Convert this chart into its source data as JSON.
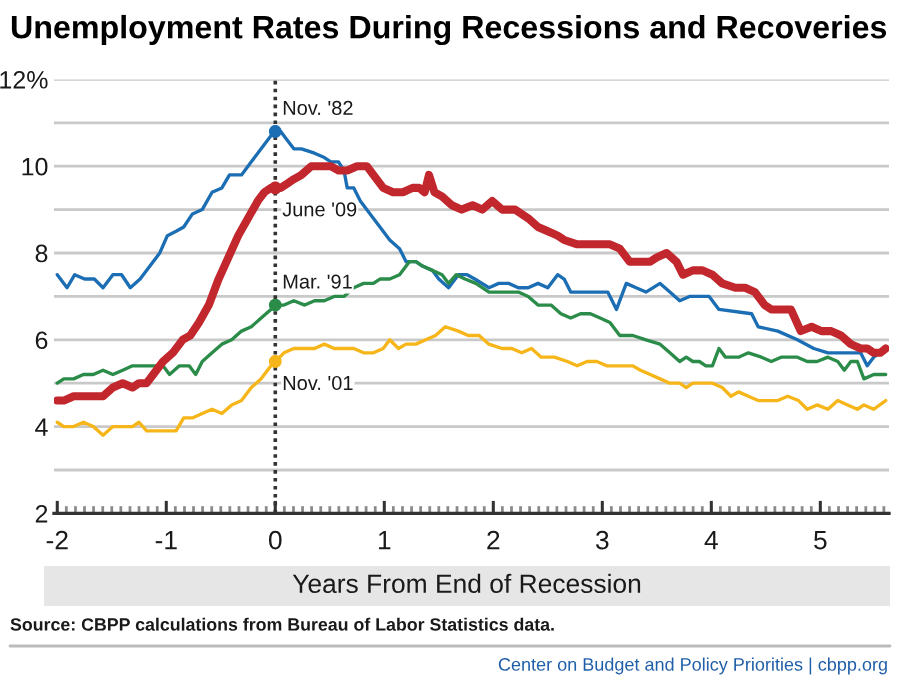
{
  "chart_data": {
    "type": "line",
    "title": "Unemployment Rates During Recessions and Recoveries",
    "xlabel": "Years From End of Recession",
    "annotations": [
      "Source: CBPP calculations from Bureau of Labor Statistics data.",
      "Center on Budget and Policy Priorities | cbpp.org"
    ],
    "xlim": [
      -2.03,
      5.63
    ],
    "xticks": [
      -2,
      {
        "value": -1.917,
        "label": null
      },
      {
        "value": -1.833,
        "label": null
      },
      {
        "value": -1.75,
        "label": null
      },
      {
        "value": -1.667,
        "label": null
      },
      {
        "value": -1.583,
        "label": null
      },
      {
        "value": -1.5,
        "label": null
      },
      {
        "value": -1.417,
        "label": null
      },
      {
        "value": -1.333,
        "label": null
      },
      {
        "value": -1.25,
        "label": null
      },
      {
        "value": -1.167,
        "label": null
      },
      {
        "value": -1.083,
        "label": null
      },
      -1,
      {
        "value": -0.917,
        "label": null
      },
      {
        "value": -0.833,
        "label": null
      },
      {
        "value": -0.75,
        "label": null
      },
      {
        "value": -0.667,
        "label": null
      },
      {
        "value": -0.583,
        "label": null
      },
      {
        "value": -0.5,
        "label": null
      },
      {
        "value": -0.417,
        "label": null
      },
      {
        "value": -0.333,
        "label": null
      },
      {
        "value": -0.25,
        "label": null
      },
      {
        "value": -0.167,
        "label": null
      },
      {
        "value": -0.083,
        "label": null
      },
      0,
      {
        "value": 0.083,
        "label": null
      },
      {
        "value": 0.167,
        "label": null
      },
      {
        "value": 0.25,
        "label": null
      },
      {
        "value": 0.333,
        "label": null
      },
      {
        "value": 0.417,
        "label": null
      },
      {
        "value": 0.5,
        "label": null
      },
      {
        "value": 0.583,
        "label": null
      },
      {
        "value": 0.667,
        "label": null
      },
      {
        "value": 0.75,
        "label": null
      },
      {
        "value": 0.833,
        "label": null
      },
      {
        "value": 0.917,
        "label": null
      },
      1,
      {
        "value": 1.083,
        "label": null
      },
      {
        "value": 1.167,
        "label": null
      },
      {
        "value": 1.25,
        "label": null
      },
      {
        "value": 1.333,
        "label": null
      },
      {
        "value": 1.417,
        "label": null
      },
      {
        "value": 1.5,
        "label": null
      },
      {
        "value": 1.583,
        "label": null
      },
      {
        "value": 1.667,
        "label": null
      },
      {
        "value": 1.75,
        "label": null
      },
      {
        "value": 1.833,
        "label": null
      },
      {
        "value": 1.917,
        "label": null
      },
      2,
      {
        "value": 2.083,
        "label": null
      },
      {
        "value": 2.167,
        "label": null
      },
      {
        "value": 2.25,
        "label": null
      },
      {
        "value": 2.333,
        "label": null
      },
      {
        "value": 2.417,
        "label": null
      },
      {
        "value": 2.5,
        "label": null
      },
      {
        "value": 2.583,
        "label": null
      },
      {
        "value": 2.667,
        "label": null
      },
      {
        "value": 2.75,
        "label": null
      },
      {
        "value": 2.833,
        "label": null
      },
      {
        "value": 2.917,
        "label": null
      },
      3,
      {
        "value": 3.083,
        "label": null
      },
      {
        "value": 3.167,
        "label": null
      },
      {
        "value": 3.25,
        "label": null
      },
      {
        "value": 3.333,
        "label": null
      },
      {
        "value": 3.417,
        "label": null
      },
      {
        "value": 3.5,
        "label": null
      },
      {
        "value": 3.583,
        "label": null
      },
      {
        "value": 3.667,
        "label": null
      },
      {
        "value": 3.75,
        "label": null
      },
      {
        "value": 3.833,
        "label": null
      },
      {
        "value": 3.917,
        "label": null
      },
      4,
      {
        "value": 4.083,
        "label": null
      },
      {
        "value": 4.167,
        "label": null
      },
      {
        "value": 4.25,
        "label": null
      },
      {
        "value": 4.333,
        "label": null
      },
      {
        "value": 4.417,
        "label": null
      },
      {
        "value": 4.5,
        "label": null
      },
      {
        "value": 4.583,
        "label": null
      },
      {
        "value": 4.667,
        "label": null
      },
      {
        "value": 4.75,
        "label": null
      },
      {
        "value": 4.833,
        "label": null
      },
      {
        "value": 4.917,
        "label": null
      },
      5,
      {
        "value": 5.083,
        "label": null
      },
      {
        "value": 5.167,
        "label": null
      },
      {
        "value": 5.25,
        "label": null
      },
      {
        "value": 5.333,
        "label": null
      },
      {
        "value": 5.417,
        "label": null
      },
      {
        "value": 5.5,
        "label": null
      },
      {
        "value": 5.583,
        "label": null
      }
    ],
    "ylim": [
      2,
      12
    ],
    "yticks": [
      2,
      {
        "value": 3,
        "label": null
      },
      4,
      {
        "value": 5,
        "label": null
      },
      6,
      {
        "value": 7,
        "label": null
      },
      8,
      {
        "value": 9,
        "label": null
      },
      10,
      {
        "value": 11,
        "label": null
      },
      {
        "value": 12,
        "label": "12%"
      }
    ],
    "grid": "y",
    "ref_lines": [
      {
        "axis": "x",
        "value": 0,
        "color": "#333333",
        "line_style": "dotted"
      }
    ],
    "series": [
      {
        "name": "Nov. '82",
        "color": "#1c6eb4",
        "x": [
          -2.0,
          -1.91,
          -1.84,
          -1.75,
          -1.66,
          -1.58,
          -1.49,
          -1.41,
          -1.33,
          -1.24,
          -1.15,
          -1.06,
          -0.99,
          -0.91,
          -0.84,
          -0.76,
          -0.67,
          -0.58,
          -0.49,
          -0.42,
          -0.31,
          -0.22,
          -0.13,
          -0.04,
          0,
          0.05,
          0.11,
          0.17,
          0.24,
          0.36,
          0.45,
          0.51,
          0.58,
          0.63,
          0.66,
          0.72,
          0.78,
          0.87,
          0.96,
          1.05,
          1.14,
          1.2,
          1.29,
          1.35,
          1.44,
          1.5,
          1.59,
          1.68,
          1.76,
          1.83,
          1.96,
          2.05,
          2.14,
          2.23,
          2.32,
          2.41,
          2.5,
          2.59,
          2.65,
          2.71,
          2.83,
          2.95,
          3.05,
          3.13,
          3.22,
          3.31,
          3.4,
          3.53,
          3.62,
          3.71,
          3.8,
          3.89,
          3.98,
          4.07,
          4.37,
          4.43,
          4.61,
          4.79,
          4.94,
          5.07,
          5.28,
          5.37,
          5.43,
          5.49,
          5.6
        ],
        "values": [
          7.5,
          7.2,
          7.5,
          7.4,
          7.4,
          7.2,
          7.5,
          7.5,
          7.2,
          7.4,
          7.7,
          8.0,
          8.4,
          8.5,
          8.6,
          8.9,
          9.0,
          9.4,
          9.5,
          9.8,
          9.8,
          10.1,
          10.4,
          10.7,
          10.8,
          10.8,
          10.6,
          10.4,
          10.4,
          10.3,
          10.2,
          10.1,
          10.1,
          9.9,
          9.5,
          9.5,
          9.2,
          8.9,
          8.6,
          8.3,
          8.1,
          7.8,
          7.8,
          7.7,
          7.6,
          7.4,
          7.2,
          7.5,
          7.5,
          7.4,
          7.2,
          7.3,
          7.3,
          7.2,
          7.2,
          7.3,
          7.2,
          7.5,
          7.4,
          7.1,
          7.1,
          7.1,
          7.1,
          6.7,
          7.3,
          7.2,
          7.1,
          7.3,
          7.1,
          6.9,
          7.0,
          7.0,
          7.0,
          6.7,
          6.6,
          6.3,
          6.2,
          6.0,
          5.8,
          5.7,
          5.7,
          5.7,
          5.4,
          5.6,
          5.8
        ]
      },
      {
        "name": "June '09",
        "color": "#c1272d",
        "x": [
          -2.0,
          -1.94,
          -1.85,
          -1.76,
          -1.67,
          -1.58,
          -1.49,
          -1.4,
          -1.31,
          -1.25,
          -1.18,
          -1.12,
          -1.03,
          -0.94,
          -0.85,
          -0.78,
          -0.7,
          -0.61,
          -0.52,
          -0.43,
          -0.34,
          -0.25,
          -0.16,
          -0.1,
          -0.04,
          0,
          0.05,
          0.11,
          0.17,
          0.24,
          0.33,
          0.42,
          0.51,
          0.58,
          0.66,
          0.75,
          0.84,
          0.9,
          0.99,
          1.08,
          1.17,
          1.26,
          1.32,
          1.37,
          1.41,
          1.46,
          1.53,
          1.62,
          1.71,
          1.81,
          1.9,
          1.99,
          2.08,
          2.2,
          2.32,
          2.41,
          2.5,
          2.59,
          2.65,
          2.77,
          2.92,
          3.07,
          3.16,
          3.25,
          3.35,
          3.44,
          3.5,
          3.59,
          3.68,
          3.74,
          3.83,
          3.92,
          4.01,
          4.1,
          4.22,
          4.31,
          4.4,
          4.49,
          4.55,
          4.64,
          4.73,
          4.82,
          4.92,
          5.01,
          5.1,
          5.19,
          5.28,
          5.37,
          5.43,
          5.49,
          5.55,
          5.6
        ],
        "values": [
          4.6,
          4.6,
          4.7,
          4.7,
          4.7,
          4.7,
          4.9,
          5.0,
          4.9,
          5.0,
          5.0,
          5.2,
          5.5,
          5.7,
          6.0,
          6.1,
          6.4,
          6.8,
          7.4,
          7.9,
          8.4,
          8.8,
          9.2,
          9.4,
          9.5,
          9.5,
          9.5,
          9.6,
          9.7,
          9.8,
          10.0,
          10.0,
          10.0,
          9.9,
          9.9,
          10.0,
          10.0,
          9.8,
          9.5,
          9.4,
          9.4,
          9.5,
          9.5,
          9.4,
          9.8,
          9.4,
          9.3,
          9.1,
          9.0,
          9.1,
          9.0,
          9.2,
          9.0,
          9.0,
          8.8,
          8.6,
          8.5,
          8.4,
          8.3,
          8.2,
          8.2,
          8.2,
          8.1,
          7.8,
          7.8,
          7.8,
          7.9,
          8.0,
          7.8,
          7.5,
          7.6,
          7.6,
          7.5,
          7.3,
          7.2,
          7.2,
          7.1,
          6.8,
          6.7,
          6.7,
          6.7,
          6.2,
          6.3,
          6.2,
          6.2,
          6.1,
          5.9,
          5.8,
          5.8,
          5.7,
          5.7,
          5.8
        ]
      },
      {
        "name": "Mar. '91",
        "color": "#2b8c4a",
        "x": [
          -2.0,
          -1.94,
          -1.85,
          -1.76,
          -1.67,
          -1.58,
          -1.49,
          -1.4,
          -1.31,
          -1.21,
          -1.12,
          -1.03,
          -0.97,
          -0.88,
          -0.79,
          -0.73,
          -0.67,
          -0.58,
          -0.49,
          -0.4,
          -0.31,
          -0.22,
          -0.13,
          -0.04,
          0,
          0.08,
          0.17,
          0.27,
          0.36,
          0.45,
          0.54,
          0.63,
          0.72,
          0.81,
          0.9,
          0.96,
          1.05,
          1.14,
          1.23,
          1.29,
          1.35,
          1.44,
          1.53,
          1.59,
          1.66,
          1.74,
          1.84,
          1.96,
          2.05,
          2.14,
          2.23,
          2.32,
          2.41,
          2.53,
          2.62,
          2.71,
          2.8,
          2.89,
          2.98,
          3.07,
          3.16,
          3.28,
          3.4,
          3.53,
          3.62,
          3.71,
          3.77,
          3.83,
          3.89,
          3.95,
          4.01,
          4.07,
          4.13,
          4.25,
          4.34,
          4.46,
          4.55,
          4.64,
          4.79,
          4.88,
          4.97,
          5.07,
          5.16,
          5.22,
          5.28,
          5.34,
          5.4,
          5.49,
          5.6
        ],
        "values": [
          5.0,
          5.1,
          5.1,
          5.2,
          5.2,
          5.3,
          5.2,
          5.3,
          5.4,
          5.4,
          5.4,
          5.4,
          5.2,
          5.4,
          5.4,
          5.2,
          5.5,
          5.7,
          5.9,
          6.0,
          6.2,
          6.3,
          6.5,
          6.7,
          6.8,
          6.8,
          6.9,
          6.8,
          6.9,
          6.9,
          7.0,
          7.0,
          7.2,
          7.3,
          7.3,
          7.4,
          7.4,
          7.5,
          7.8,
          7.8,
          7.7,
          7.6,
          7.5,
          7.3,
          7.5,
          7.4,
          7.3,
          7.1,
          7.1,
          7.1,
          7.1,
          7.0,
          6.8,
          6.8,
          6.6,
          6.5,
          6.6,
          6.6,
          6.5,
          6.4,
          6.1,
          6.1,
          6.0,
          5.9,
          5.7,
          5.5,
          5.6,
          5.5,
          5.5,
          5.4,
          5.4,
          5.8,
          5.6,
          5.6,
          5.7,
          5.6,
          5.5,
          5.6,
          5.6,
          5.5,
          5.5,
          5.6,
          5.5,
          5.3,
          5.5,
          5.5,
          5.1,
          5.2,
          5.2
        ]
      },
      {
        "name": "Nov. '01",
        "color": "#f6b61a",
        "x": [
          -2.0,
          -1.94,
          -1.85,
          -1.76,
          -1.67,
          -1.58,
          -1.49,
          -1.4,
          -1.31,
          -1.25,
          -1.18,
          -1.12,
          -1.03,
          -0.91,
          -0.84,
          -0.76,
          -0.67,
          -0.58,
          -0.49,
          -0.4,
          -0.31,
          -0.22,
          -0.13,
          -0.04,
          0,
          0.08,
          0.17,
          0.36,
          0.45,
          0.54,
          0.63,
          0.72,
          0.81,
          0.9,
          0.99,
          1.05,
          1.13,
          1.2,
          1.29,
          1.38,
          1.47,
          1.56,
          1.68,
          1.77,
          1.87,
          1.96,
          2.08,
          2.17,
          2.26,
          2.35,
          2.44,
          2.56,
          2.68,
          2.77,
          2.86,
          2.95,
          3.04,
          3.13,
          3.22,
          3.28,
          3.35,
          3.44,
          3.53,
          3.62,
          3.71,
          3.77,
          3.83,
          3.92,
          4.01,
          4.1,
          4.18,
          4.25,
          4.34,
          4.43,
          4.52,
          4.61,
          4.7,
          4.8,
          4.88,
          4.97,
          5.07,
          5.16,
          5.25,
          5.34,
          5.4,
          5.49,
          5.6
        ],
        "values": [
          4.1,
          4.0,
          4.0,
          4.1,
          4.0,
          3.8,
          4.0,
          4.0,
          4.0,
          4.1,
          3.9,
          3.9,
          3.9,
          3.9,
          4.2,
          4.2,
          4.3,
          4.4,
          4.3,
          4.5,
          4.6,
          4.9,
          5.1,
          5.4,
          5.5,
          5.7,
          5.8,
          5.8,
          5.9,
          5.8,
          5.8,
          5.8,
          5.7,
          5.7,
          5.8,
          6.0,
          5.8,
          5.9,
          5.9,
          6.0,
          6.1,
          6.3,
          6.2,
          6.1,
          6.1,
          5.9,
          5.8,
          5.8,
          5.7,
          5.8,
          5.6,
          5.6,
          5.5,
          5.4,
          5.5,
          5.5,
          5.4,
          5.4,
          5.4,
          5.4,
          5.3,
          5.2,
          5.1,
          5.0,
          5.0,
          4.9,
          5.0,
          5.0,
          5.0,
          4.9,
          4.7,
          4.8,
          4.7,
          4.6,
          4.6,
          4.6,
          4.7,
          4.6,
          4.4,
          4.5,
          4.4,
          4.6,
          4.5,
          4.4,
          4.5,
          4.4,
          4.6
        ]
      }
    ]
  }
}
